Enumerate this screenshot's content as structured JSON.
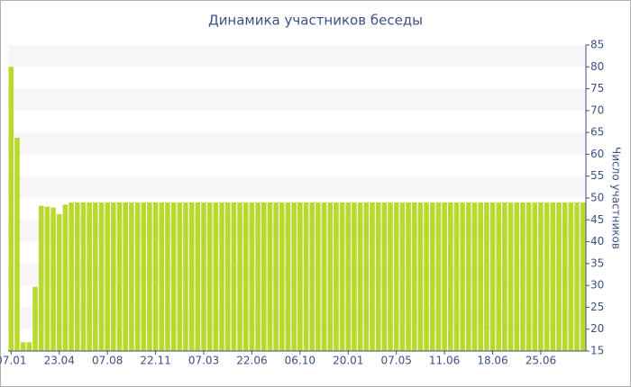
{
  "chart_data": {
    "type": "bar",
    "title": "Динамика участников беседы",
    "y_label": "Число участников",
    "categories": [
      "07.01",
      null,
      null,
      null,
      null,
      null,
      null,
      null,
      "23.04",
      null,
      null,
      null,
      null,
      null,
      null,
      null,
      "07.08",
      null,
      null,
      null,
      null,
      null,
      null,
      null,
      "22.11",
      null,
      null,
      null,
      null,
      null,
      null,
      null,
      "07.03",
      null,
      null,
      null,
      null,
      null,
      null,
      null,
      "22.06",
      null,
      null,
      null,
      null,
      null,
      null,
      null,
      "06.10",
      null,
      null,
      null,
      null,
      null,
      null,
      null,
      "20.01",
      null,
      null,
      null,
      null,
      null,
      null,
      null,
      "07.05",
      null,
      null,
      null,
      null,
      null,
      null,
      null,
      "11.06",
      null,
      null,
      null,
      null,
      null,
      null,
      null,
      "18.06",
      null,
      null,
      null,
      null,
      null,
      null,
      null,
      "25.06",
      null,
      null,
      null,
      null,
      null,
      null,
      null
    ],
    "values": [
      80,
      63.8,
      17,
      17,
      29.7,
      48.2,
      48,
      47.8,
      46.3,
      48.5,
      49,
      49,
      49,
      49,
      49,
      49,
      49,
      49,
      49,
      49,
      49,
      49,
      49,
      49,
      49,
      49,
      49,
      49,
      49,
      49,
      49,
      49,
      49,
      49,
      49,
      49,
      49,
      49,
      49,
      49,
      49,
      49,
      49,
      49,
      49,
      49,
      49,
      49,
      49,
      49,
      49,
      49,
      49,
      49,
      49,
      49,
      49,
      49,
      49,
      49,
      49,
      49,
      49,
      49,
      49,
      49,
      49,
      49,
      49,
      49,
      49,
      49,
      49,
      49,
      49,
      49,
      49,
      49,
      49,
      49,
      49,
      49,
      49,
      49,
      49,
      49,
      49,
      49,
      49,
      49,
      49,
      49,
      49,
      49,
      49,
      49
    ],
    "color": "#b8d92e",
    "ylim": [
      15,
      85
    ],
    "yticks": [
      15,
      20,
      25,
      30,
      35,
      40,
      45,
      50,
      55,
      60,
      65,
      70,
      75,
      80,
      85
    ],
    "grid": true
  }
}
